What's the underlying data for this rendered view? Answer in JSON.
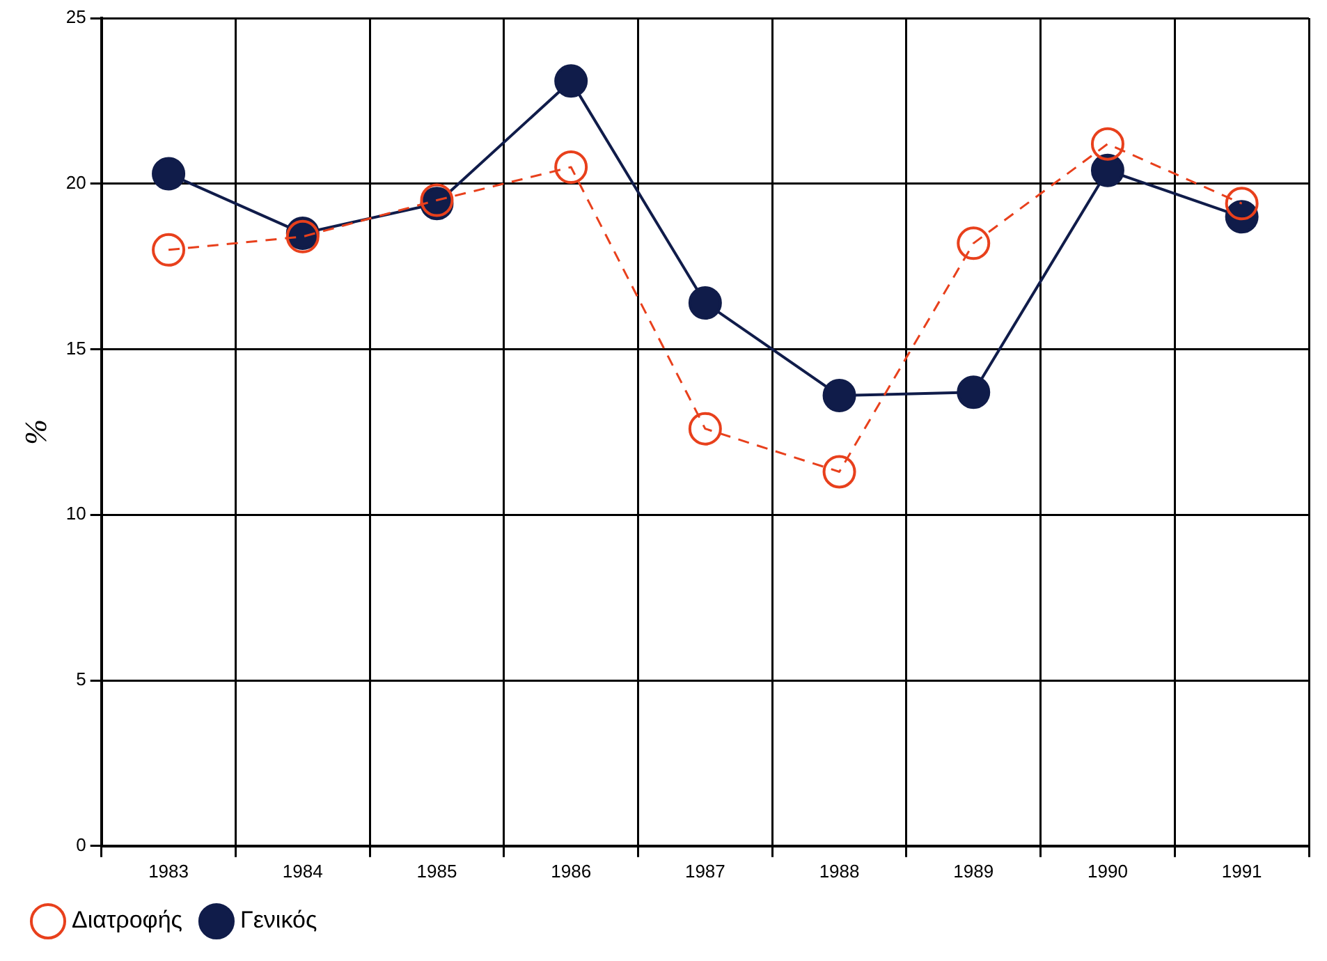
{
  "chart_data": {
    "type": "line",
    "ylabel": "%",
    "categories": [
      "1983",
      "1984",
      "1985",
      "1986",
      "1987",
      "1988",
      "1989",
      "1990",
      "1991"
    ],
    "series": [
      {
        "name": "Γενικός",
        "color": "#101c4a",
        "line_style": "solid",
        "values": [
          20.3,
          18.5,
          19.4,
          23.1,
          16.4,
          13.6,
          13.7,
          20.4,
          19.0
        ]
      },
      {
        "name": "Διατροφής",
        "color": "#e8401c",
        "line_style": "dashed",
        "values": [
          18.0,
          18.4,
          19.5,
          20.5,
          12.6,
          11.3,
          18.2,
          21.2,
          19.4
        ]
      }
    ],
    "ylim": [
      0,
      25
    ],
    "yticks": [
      0,
      5,
      10,
      15,
      20,
      25
    ],
    "grid": true,
    "legend": "bottom left",
    "marker": "circle"
  }
}
